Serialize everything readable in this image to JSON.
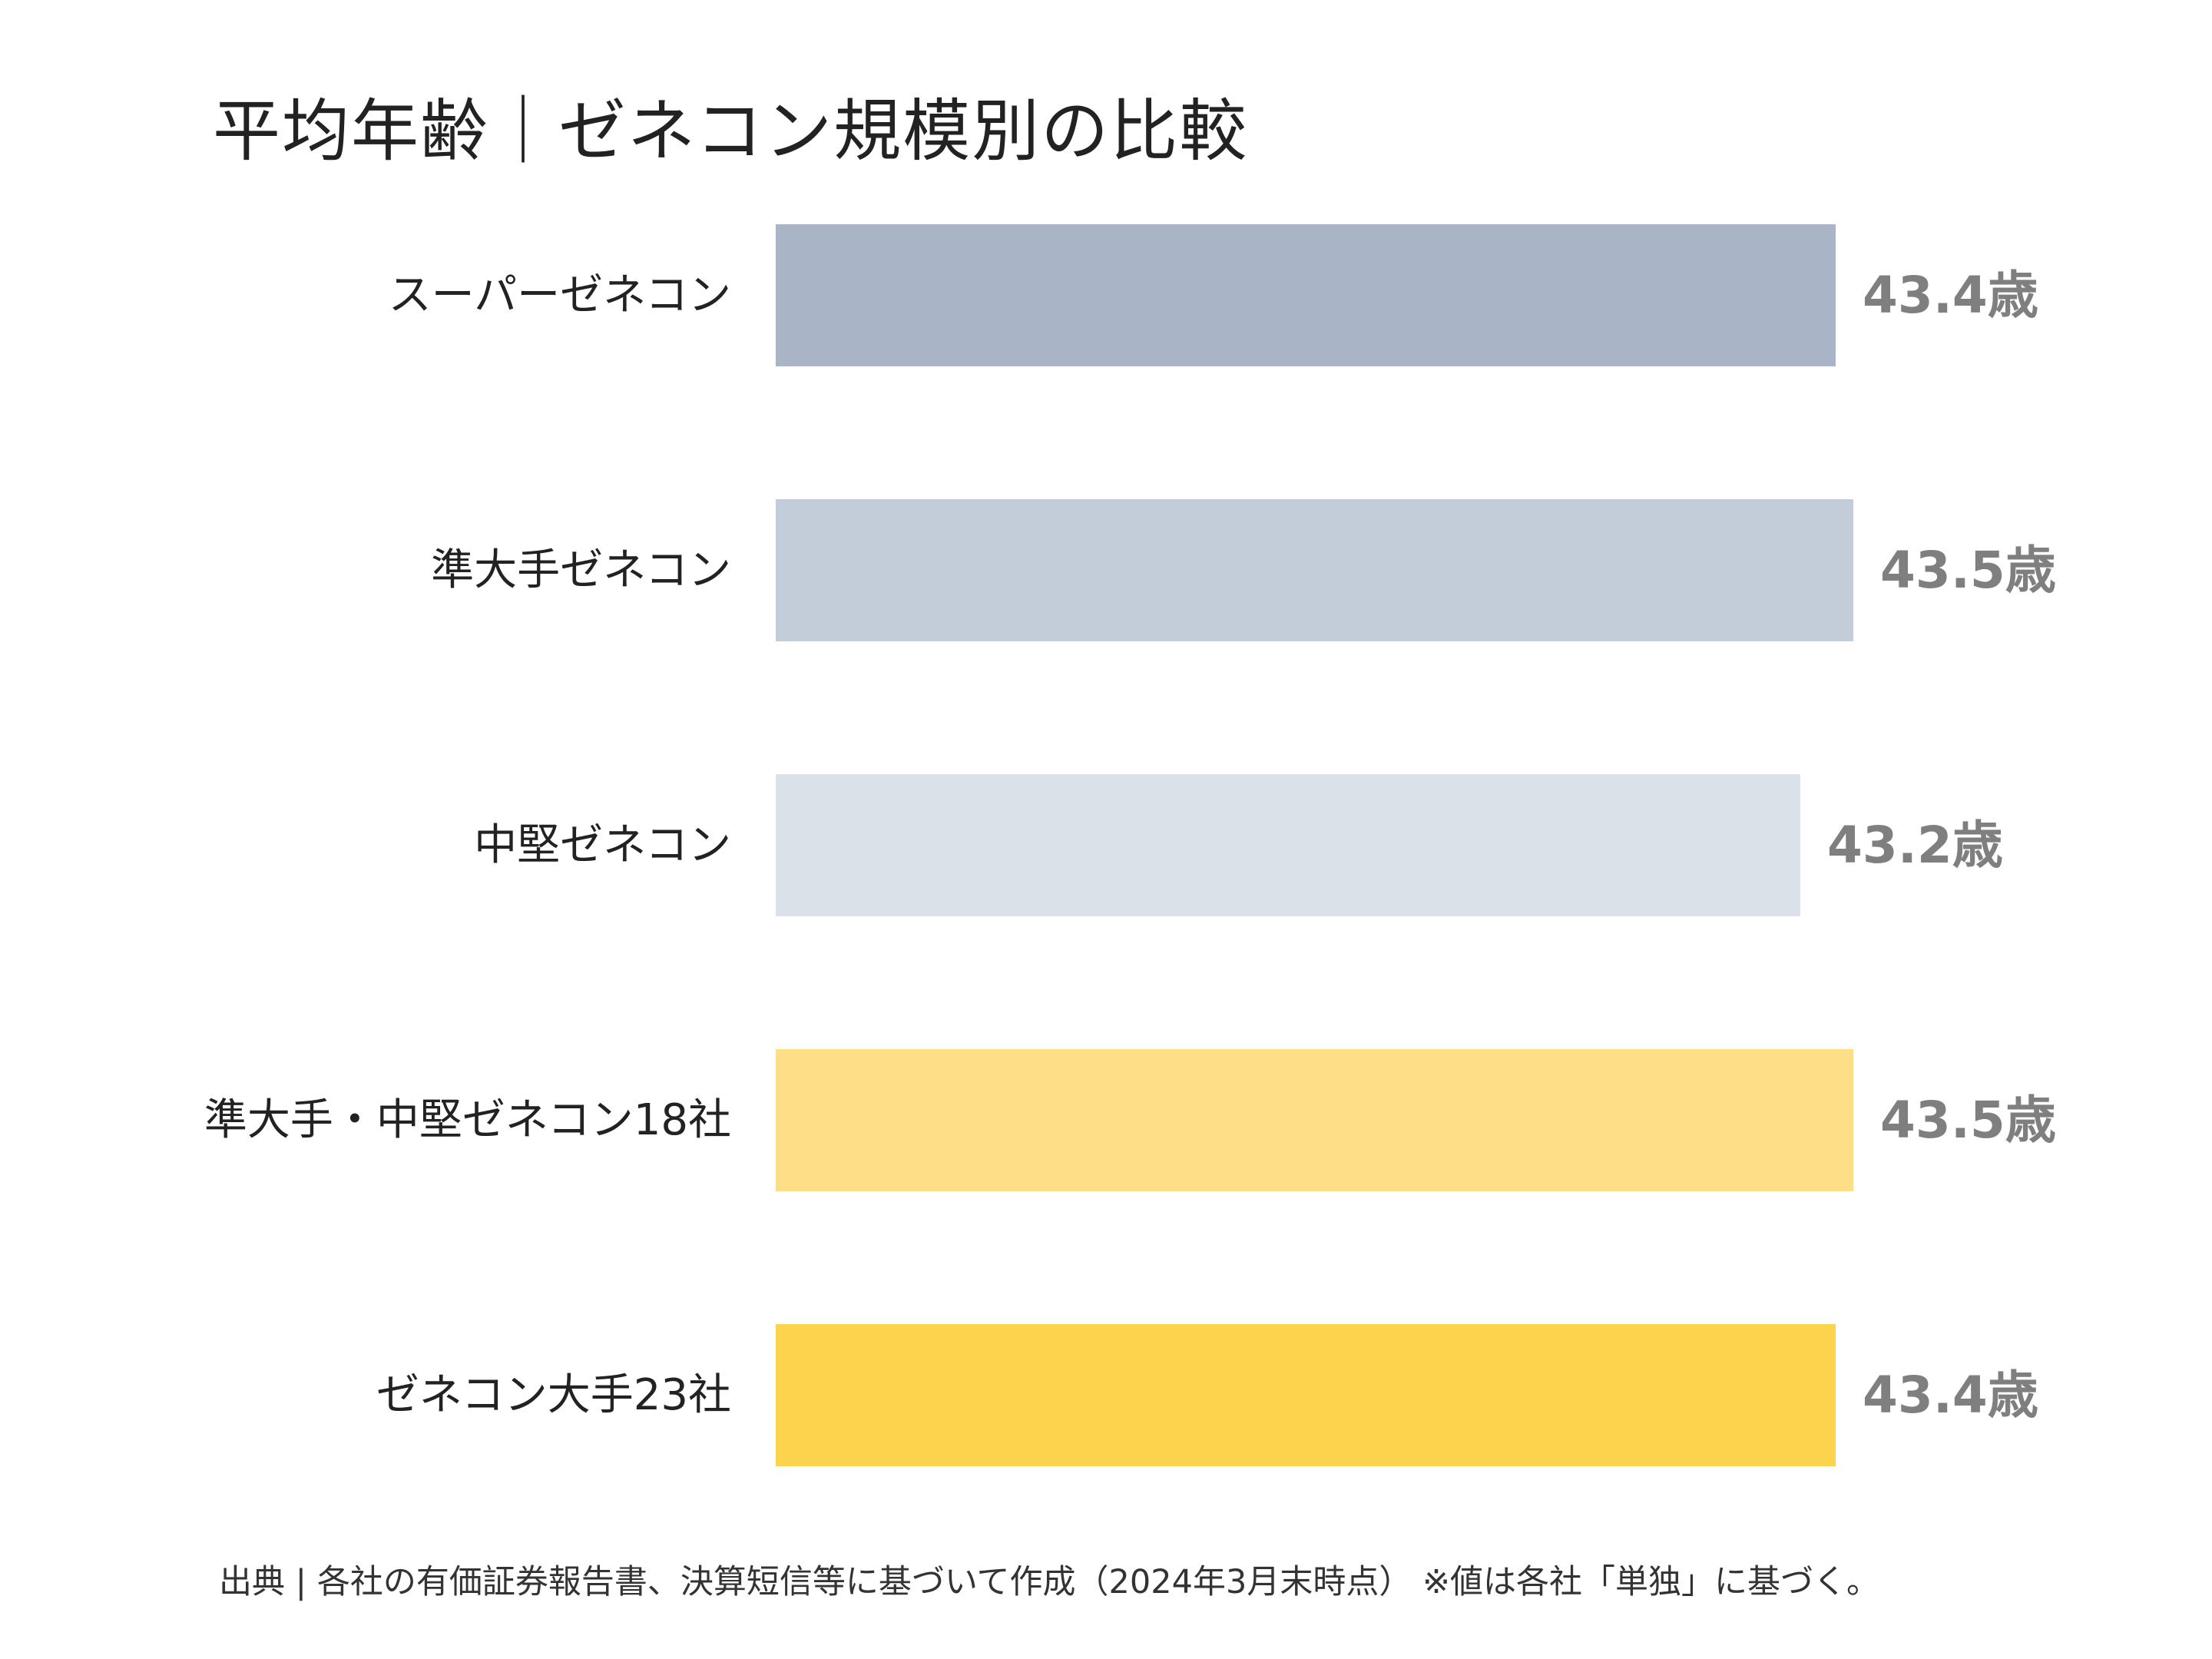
{
  "chart_data": {
    "type": "bar",
    "orientation": "horizontal",
    "title": "平均年齢｜ゼネコン規模別の比較",
    "categories": [
      "スーパーゼネコン",
      "準大手ゼネコン",
      "中堅ゼネコン",
      "準大手・中堅ゼネコン18社",
      "ゼネコン大手23社"
    ],
    "values": [
      43.4,
      43.5,
      43.2,
      43.5,
      43.4
    ],
    "value_labels": [
      "43.4歳",
      "43.5歳",
      "43.2歳",
      "43.5歳",
      "43.4歳"
    ],
    "unit": "歳",
    "colors": [
      "#a9b5c7",
      "#c3ccd9",
      "#dbe1e9",
      "#fedf87",
      "#fdd34d"
    ],
    "value_label_color": "#7f7f7f",
    "xlabel": "",
    "ylabel": "",
    "grid": false,
    "legend": "none"
  },
  "footer": {
    "source": "出典 | 各社の有価証券報告書、決算短信等に基づいて作成（2024年3月末時点） ※値は各社「単独」に基づく。"
  }
}
